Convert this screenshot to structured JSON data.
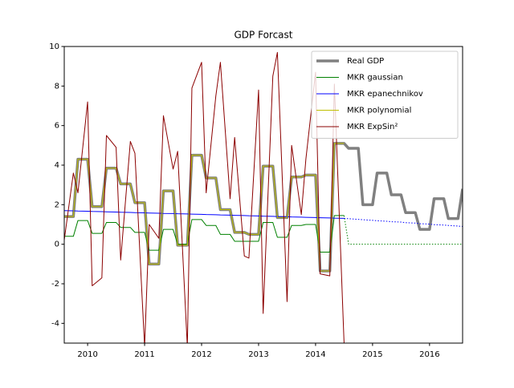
{
  "chart_data": {
    "type": "line",
    "title": "GDP Forcast",
    "x": [
      2009.58,
      2009.75,
      2009.83,
      2010.0,
      2010.08,
      2010.25,
      2010.33,
      2010.5,
      2010.58,
      2010.75,
      2010.83,
      2011.0,
      2011.08,
      2011.25,
      2011.33,
      2011.5,
      2011.58,
      2011.75,
      2011.83,
      2012.0,
      2012.08,
      2012.25,
      2012.33,
      2012.5,
      2012.58,
      2012.75,
      2012.83,
      2013.0,
      2013.08,
      2013.25,
      2013.33,
      2013.5,
      2013.58,
      2013.75,
      2013.83,
      2014.0,
      2014.08,
      2014.25,
      2014.33,
      2014.5,
      2014.58,
      2014.75,
      2014.83,
      2015.0,
      2015.08,
      2015.25,
      2015.33,
      2015.5,
      2015.58,
      2015.75,
      2015.83,
      2016.0,
      2016.08,
      2016.25,
      2016.33,
      2016.5,
      2016.58
    ],
    "series": [
      {
        "name": "Real GDP",
        "color": "#808080",
        "width": 3.5,
        "values": [
          1.4,
          1.4,
          4.3,
          4.3,
          1.9,
          1.9,
          3.85,
          3.85,
          3.05,
          3.05,
          2.1,
          2.1,
          -1.0,
          -1.0,
          2.7,
          2.7,
          -0.05,
          -0.05,
          4.5,
          4.5,
          3.35,
          3.35,
          1.75,
          1.75,
          0.6,
          0.6,
          0.5,
          0.5,
          3.95,
          3.95,
          1.35,
          1.35,
          3.4,
          3.4,
          3.5,
          3.5,
          -1.35,
          -1.35,
          5.1,
          5.1,
          4.85,
          4.85,
          2.0,
          2.0,
          3.6,
          3.6,
          2.5,
          2.5,
          1.6,
          1.6,
          0.75,
          0.75,
          2.3,
          2.3,
          1.3,
          1.3,
          2.8
        ]
      },
      {
        "name": "MKR gaussian",
        "color": "#008000",
        "width": 1,
        "values": [
          0.4,
          0.4,
          1.2,
          1.2,
          0.55,
          0.55,
          1.1,
          1.1,
          0.85,
          0.85,
          0.6,
          0.6,
          -0.3,
          -0.3,
          0.75,
          0.75,
          0.0,
          0.0,
          1.25,
          1.25,
          0.95,
          0.95,
          0.5,
          0.5,
          0.15,
          0.15,
          0.15,
          0.15,
          1.1,
          1.1,
          0.35,
          0.35,
          0.95,
          0.95,
          1.0,
          1.0,
          -0.4,
          -0.4,
          1.45,
          1.45,
          null,
          null,
          null,
          null,
          null,
          null,
          null,
          null,
          null,
          null,
          null,
          null,
          null,
          null,
          null,
          null,
          null
        ],
        "forecast": [
          null,
          null,
          null,
          null,
          null,
          null,
          null,
          null,
          null,
          null,
          null,
          null,
          null,
          null,
          null,
          null,
          null,
          null,
          null,
          null,
          null,
          null,
          null,
          null,
          null,
          null,
          null,
          null,
          null,
          null,
          null,
          null,
          null,
          null,
          null,
          null,
          null,
          null,
          null,
          1.45,
          0,
          0,
          0,
          0,
          0,
          0,
          0,
          0,
          0,
          0,
          0,
          0,
          0,
          0,
          0,
          0,
          0
        ]
      },
      {
        "name": "MKR epanechnikov",
        "color": "#0000ff",
        "width": 1,
        "values": [
          1.7,
          1.69,
          1.68,
          1.67,
          1.66,
          1.65,
          1.64,
          1.63,
          1.62,
          1.61,
          1.6,
          1.59,
          1.58,
          1.57,
          1.56,
          1.55,
          1.54,
          1.53,
          1.52,
          1.51,
          1.5,
          1.49,
          1.48,
          1.47,
          1.46,
          1.45,
          1.44,
          1.43,
          1.42,
          1.41,
          1.4,
          1.39,
          1.38,
          1.37,
          1.36,
          1.35,
          1.34,
          1.33,
          1.32,
          1.31,
          null,
          null,
          null,
          null,
          null,
          null,
          null,
          null,
          null,
          null,
          null,
          null,
          null,
          null,
          null,
          null,
          null
        ],
        "forecast": [
          null,
          null,
          null,
          null,
          null,
          null,
          null,
          null,
          null,
          null,
          null,
          null,
          null,
          null,
          null,
          null,
          null,
          null,
          null,
          null,
          null,
          null,
          null,
          null,
          null,
          null,
          null,
          null,
          null,
          null,
          null,
          null,
          null,
          null,
          null,
          null,
          null,
          null,
          null,
          1.31,
          1.29,
          1.26,
          1.24,
          1.21,
          1.19,
          1.16,
          1.14,
          1.12,
          1.09,
          1.07,
          1.04,
          1.02,
          0.99,
          0.97,
          0.95,
          0.92,
          0.9
        ]
      },
      {
        "name": "MKR polynomial",
        "color": "#bfbf00",
        "width": 1,
        "values": [
          1.4,
          1.4,
          4.3,
          4.3,
          1.9,
          1.9,
          3.85,
          3.85,
          3.05,
          3.05,
          2.1,
          2.1,
          -1.0,
          -1.0,
          2.7,
          2.7,
          -0.05,
          -0.05,
          4.5,
          4.5,
          3.35,
          3.35,
          1.75,
          1.75,
          0.6,
          0.6,
          0.5,
          0.5,
          3.95,
          3.95,
          1.35,
          1.35,
          3.4,
          3.4,
          3.5,
          3.5,
          -1.35,
          -1.35,
          5.1,
          5.1,
          null,
          null,
          null,
          null,
          null,
          null,
          null,
          null,
          null,
          null,
          null,
          null,
          null,
          null,
          null,
          null,
          null
        ]
      },
      {
        "name": "MKR ExpSin²",
        "color": "#8b0000",
        "width": 1,
        "values": [
          0.0,
          3.6,
          2.6,
          7.2,
          -2.1,
          -1.7,
          5.5,
          4.9,
          -0.8,
          5.2,
          4.6,
          -5.2,
          1.0,
          0.3,
          6.5,
          3.8,
          4.7,
          -5.2,
          7.9,
          9.2,
          2.6,
          7.5,
          9.2,
          2.3,
          5.4,
          -0.6,
          -0.7,
          7.8,
          -3.5,
          8.5,
          9.7,
          -2.9,
          5.0,
          1.5,
          4.3,
          8.7,
          -1.5,
          -1.6,
          8.1,
          -5.0,
          null,
          null,
          null,
          null,
          null,
          null,
          null,
          null,
          null,
          null,
          null,
          null,
          null,
          null,
          null,
          null,
          null
        ]
      }
    ],
    "xlim": [
      2009.59,
      2016.58
    ],
    "xticks": [
      2010,
      2011,
      2012,
      2013,
      2014,
      2015,
      2016
    ],
    "ylim": [
      -5,
      10
    ],
    "yticks": [
      -4,
      -2,
      0,
      2,
      4,
      6,
      8,
      10
    ],
    "forecast_style": "dotted",
    "grid": false,
    "legend": "upper right"
  }
}
